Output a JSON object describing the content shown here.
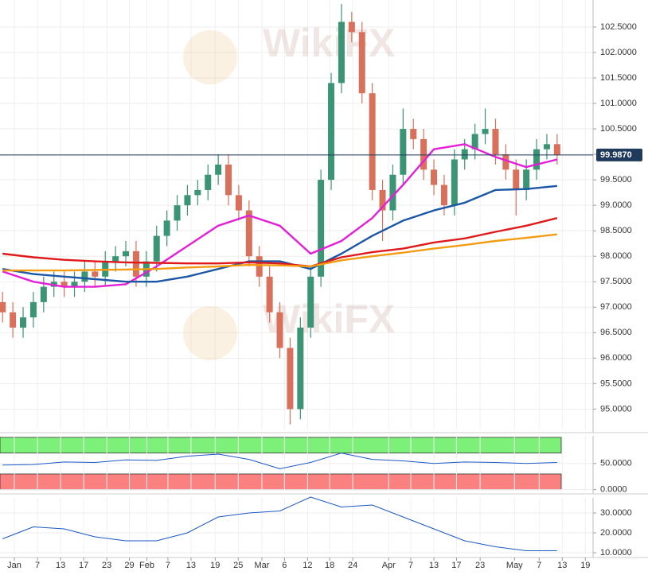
{
  "chart_data": [
    {
      "type": "candlestick",
      "watermark": "WikiFX",
      "xlim": [
        -0.5,
        115
      ],
      "ylim": [
        94.6,
        103.03
      ],
      "yticks": [
        {
          "value": 95,
          "label": "95.0000"
        },
        {
          "value": 95.5,
          "label": "95.5000"
        },
        {
          "value": 96,
          "label": "96.0000"
        },
        {
          "value": 96.5,
          "label": "96.5000"
        },
        {
          "value": 97,
          "label": "97.0000"
        },
        {
          "value": 97.5,
          "label": "97.5000"
        },
        {
          "value": 98,
          "label": "98.0000"
        },
        {
          "value": 98.5,
          "label": "98.5000"
        },
        {
          "value": 99,
          "label": "99.0000"
        },
        {
          "value": 99.5,
          "label": "99.5000"
        },
        {
          "value": 100,
          "label": "100.0000"
        },
        {
          "value": 100.5,
          "label": "100.5000"
        },
        {
          "value": 101,
          "label": "101.0000"
        },
        {
          "value": 101.5,
          "label": "101.5000"
        },
        {
          "value": 102,
          "label": "102.0000"
        },
        {
          "value": 102.5,
          "label": "102.5000"
        }
      ],
      "grid": true,
      "last_price": {
        "value": 99.987,
        "label": "99.9870",
        "color": "#1f3a5a"
      },
      "candles": {
        "up_color": "#3b9474",
        "down_color": "#d9705c",
        "x": [
          0,
          2,
          4,
          6,
          8,
          10,
          12,
          14,
          16,
          18,
          20,
          22,
          24,
          26,
          28,
          30,
          32,
          34,
          36,
          38,
          40,
          42,
          44,
          46,
          48,
          50,
          52,
          54,
          56,
          58,
          60,
          62,
          64,
          66,
          68,
          70,
          72,
          74,
          76,
          78,
          80,
          82,
          84,
          86,
          88,
          90,
          92,
          94,
          96,
          98,
          100,
          102,
          104,
          106,
          108
        ],
        "open": [
          97.1,
          96.9,
          96.6,
          96.8,
          97.1,
          97.4,
          97.5,
          97.4,
          97.5,
          97.7,
          97.6,
          97.9,
          98.0,
          98.1,
          97.6,
          97.9,
          98.4,
          98.7,
          99.0,
          99.2,
          99.3,
          99.6,
          99.8,
          99.2,
          98.9,
          98.0,
          97.6,
          96.9,
          96.2,
          95.0,
          96.6,
          97.6,
          99.5,
          101.4,
          102.6,
          102.4,
          101.2,
          99.3,
          98.9,
          99.6,
          100.5,
          100.3,
          99.7,
          99.4,
          99.0,
          99.9,
          100.1,
          100.4,
          100.5,
          100.0,
          99.7,
          99.3,
          99.7,
          100.1,
          100.2
        ],
        "high": [
          97.3,
          97.1,
          97.0,
          97.3,
          97.6,
          97.7,
          97.7,
          97.7,
          97.9,
          97.9,
          98.1,
          98.2,
          98.3,
          98.3,
          98.1,
          98.6,
          98.9,
          99.2,
          99.4,
          99.5,
          99.8,
          100.0,
          100.0,
          99.4,
          99.1,
          98.2,
          97.8,
          97.1,
          96.4,
          96.8,
          97.8,
          99.7,
          101.6,
          102.95,
          102.8,
          102.6,
          101.4,
          99.5,
          99.8,
          100.9,
          100.7,
          100.5,
          99.9,
          99.6,
          100.1,
          100.3,
          100.6,
          100.9,
          100.7,
          100.2,
          99.9,
          99.9,
          100.3,
          100.4,
          100.4
        ],
        "low": [
          96.7,
          96.4,
          96.4,
          96.6,
          96.9,
          97.2,
          97.2,
          97.2,
          97.3,
          97.4,
          97.4,
          97.7,
          97.8,
          97.4,
          97.4,
          97.7,
          98.2,
          98.5,
          98.8,
          99.0,
          99.1,
          99.4,
          99.0,
          98.7,
          97.8,
          97.4,
          96.7,
          96.0,
          94.7,
          94.8,
          96.4,
          97.4,
          99.3,
          101.2,
          102.2,
          101.0,
          99.1,
          98.3,
          98.7,
          99.4,
          100.1,
          99.5,
          99.2,
          98.8,
          98.8,
          99.7,
          99.9,
          100.2,
          99.8,
          99.5,
          98.8,
          99.1,
          99.5,
          99.9,
          99.8
        ],
        "close": [
          96.9,
          96.6,
          96.8,
          97.1,
          97.4,
          97.5,
          97.4,
          97.5,
          97.7,
          97.6,
          97.9,
          98.0,
          98.1,
          97.6,
          97.9,
          98.4,
          98.7,
          99.0,
          99.2,
          99.3,
          99.6,
          99.8,
          99.2,
          98.9,
          98.0,
          97.6,
          96.9,
          96.2,
          95.0,
          96.6,
          97.6,
          99.5,
          101.4,
          102.6,
          102.4,
          101.2,
          99.3,
          98.9,
          99.6,
          100.5,
          100.3,
          99.7,
          99.4,
          99.0,
          99.9,
          100.1,
          100.4,
          100.5,
          100.0,
          99.7,
          99.3,
          99.7,
          100.1,
          100.2,
          99.987
        ]
      },
      "series": [
        {
          "color": "#e51fd8",
          "x": [
            0,
            6,
            12,
            18,
            24,
            30,
            36,
            42,
            48,
            54,
            60,
            66,
            72,
            78,
            84,
            90,
            96,
            102,
            108
          ],
          "values": [
            97.7,
            97.5,
            97.4,
            97.4,
            97.45,
            97.8,
            98.2,
            98.6,
            98.8,
            98.6,
            98.05,
            98.3,
            98.75,
            99.4,
            100.1,
            100.2,
            99.95,
            99.75,
            99.9
          ]
        },
        {
          "color": "#1b57a4",
          "x": [
            0,
            6,
            12,
            18,
            24,
            30,
            36,
            42,
            48,
            54,
            60,
            66,
            72,
            78,
            84,
            90,
            96,
            102,
            108
          ],
          "values": [
            97.75,
            97.65,
            97.6,
            97.55,
            97.5,
            97.5,
            97.6,
            97.75,
            97.9,
            97.9,
            97.75,
            98.05,
            98.4,
            98.7,
            98.9,
            99.05,
            99.3,
            99.32,
            99.38
          ]
        },
        {
          "color": "#e0191c",
          "x": [
            0,
            6,
            12,
            18,
            24,
            30,
            36,
            42,
            48,
            54,
            60,
            66,
            72,
            78,
            84,
            90,
            96,
            102,
            108
          ],
          "values": [
            98.05,
            97.98,
            97.93,
            97.9,
            97.88,
            97.87,
            97.86,
            97.86,
            97.88,
            97.86,
            97.8,
            97.98,
            98.08,
            98.15,
            98.27,
            98.35,
            98.48,
            98.6,
            98.75
          ]
        },
        {
          "color": "#f39c12",
          "x": [
            0,
            6,
            12,
            18,
            24,
            30,
            36,
            42,
            48,
            54,
            60,
            66,
            72,
            78,
            84,
            90,
            96,
            102,
            108
          ],
          "values": [
            97.72,
            97.72,
            97.72,
            97.73,
            97.74,
            97.75,
            97.78,
            97.8,
            97.83,
            97.82,
            97.8,
            97.92,
            98.0,
            98.07,
            98.15,
            98.22,
            98.3,
            98.36,
            98.43
          ]
        }
      ]
    },
    {
      "type": "line",
      "xlim": [
        -0.5,
        115
      ],
      "ylim": [
        -2,
        103
      ],
      "yticks": [
        {
          "value": 0,
          "label": "0.0000"
        },
        {
          "value": 50,
          "label": "50.0000"
        }
      ],
      "bands": [
        {
          "from": 70,
          "to": 100,
          "color": "#7df07a"
        },
        {
          "from": 0,
          "to": 30,
          "color": "#fb8080"
        }
      ],
      "series": [
        {
          "color": "#1b57c4",
          "x": [
            0,
            6,
            12,
            18,
            24,
            30,
            36,
            42,
            48,
            54,
            60,
            66,
            72,
            78,
            84,
            90,
            96,
            102,
            108
          ],
          "values": [
            47,
            48,
            53,
            52,
            57,
            56,
            64,
            68,
            58,
            40,
            52,
            70,
            58,
            55,
            50,
            53,
            52,
            50,
            52
          ]
        }
      ]
    },
    {
      "type": "line",
      "xlim": [
        -0.5,
        115
      ],
      "ylim": [
        9.2,
        37.6
      ],
      "yticks": [
        {
          "value": 10,
          "label": "10.0000"
        },
        {
          "value": 20,
          "label": "20.0000"
        },
        {
          "value": 30,
          "label": "30.0000"
        }
      ],
      "xticks": [
        {
          "value": 2.3,
          "label": "Jan"
        },
        {
          "value": 6.8,
          "label": "7"
        },
        {
          "value": 11.3,
          "label": "13"
        },
        {
          "value": 15.8,
          "label": "17"
        },
        {
          "value": 20.3,
          "label": "23"
        },
        {
          "value": 24.7,
          "label": "29"
        },
        {
          "value": 28.1,
          "label": "Feb"
        },
        {
          "value": 32.2,
          "label": "7"
        },
        {
          "value": 36.7,
          "label": "13"
        },
        {
          "value": 41.4,
          "label": "19"
        },
        {
          "value": 45.9,
          "label": "25"
        },
        {
          "value": 50.5,
          "label": "Mar"
        },
        {
          "value": 54.9,
          "label": "6"
        },
        {
          "value": 59.4,
          "label": "12"
        },
        {
          "value": 63.7,
          "label": "18"
        },
        {
          "value": 68.2,
          "label": "24"
        },
        {
          "value": 75.2,
          "label": "Apr"
        },
        {
          "value": 79.5,
          "label": "7"
        },
        {
          "value": 84,
          "label": "13"
        },
        {
          "value": 88.4,
          "label": "17"
        },
        {
          "value": 93,
          "label": "23"
        },
        {
          "value": 99.7,
          "label": "May"
        },
        {
          "value": 104.5,
          "label": "7"
        },
        {
          "value": 109,
          "label": "13"
        },
        {
          "value": 113.5,
          "label": "19"
        }
      ],
      "series": [
        {
          "color": "#1b57c4",
          "x": [
            0,
            6,
            12,
            18,
            24,
            30,
            36,
            42,
            48,
            54,
            60,
            66,
            72,
            78,
            84,
            90,
            96,
            102,
            108
          ],
          "values": [
            17,
            23,
            22,
            18,
            16,
            16,
            20,
            28,
            30,
            31,
            38,
            33,
            34,
            28,
            22,
            16,
            13,
            11,
            11
          ]
        }
      ]
    }
  ]
}
